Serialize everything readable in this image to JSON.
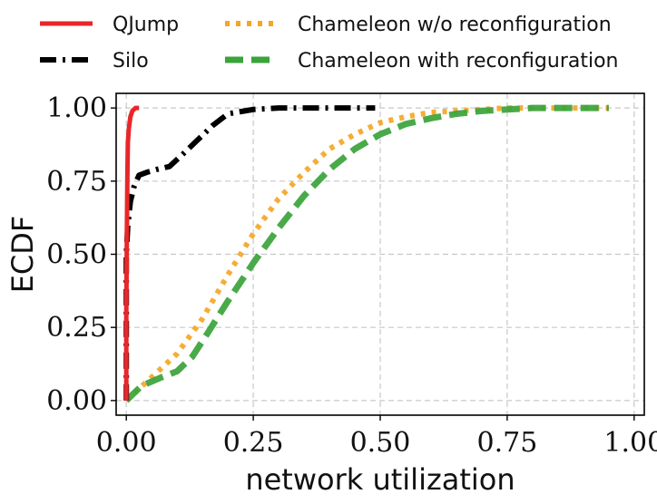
{
  "chart_data": {
    "type": "line",
    "title": "",
    "xlabel": "network utilization",
    "ylabel": "ECDF",
    "xlim": [
      -0.02,
      1.02
    ],
    "ylim": [
      -0.05,
      1.05
    ],
    "grid": true,
    "legend_position": "top",
    "xticks": [
      {
        "value": 0.0,
        "label": "0.00"
      },
      {
        "value": 0.25,
        "label": "0.25"
      },
      {
        "value": 0.5,
        "label": "0.50"
      },
      {
        "value": 0.75,
        "label": "0.75"
      },
      {
        "value": 1.0,
        "label": "1.00"
      }
    ],
    "yticks": [
      {
        "value": 0.0,
        "label": "0.00"
      },
      {
        "value": 0.25,
        "label": "0.25"
      },
      {
        "value": 0.5,
        "label": "0.50"
      },
      {
        "value": 0.75,
        "label": "0.75"
      },
      {
        "value": 1.0,
        "label": "1.00"
      }
    ],
    "series": [
      {
        "name": "QJump",
        "color": "#e8272a",
        "style": "solid",
        "x": [
          0.0,
          0.0,
          0.001,
          0.002,
          0.003,
          0.005,
          0.008,
          0.012,
          0.018,
          0.025
        ],
        "y": [
          0.0,
          0.3,
          0.55,
          0.75,
          0.88,
          0.93,
          0.97,
          0.99,
          1.0,
          1.0
        ]
      },
      {
        "name": "Silo",
        "color": "#000000",
        "style": "dashdot",
        "x": [
          0.0,
          0.0,
          0.003,
          0.008,
          0.015,
          0.025,
          0.04,
          0.06,
          0.085,
          0.11,
          0.14,
          0.17,
          0.2,
          0.25,
          0.3,
          0.4,
          0.49
        ],
        "y": [
          0.0,
          0.5,
          0.6,
          0.68,
          0.73,
          0.77,
          0.78,
          0.79,
          0.8,
          0.84,
          0.89,
          0.94,
          0.98,
          0.995,
          1.0,
          1.0,
          1.0
        ]
      },
      {
        "name": "Chameleon w/o reconfiguration",
        "color": "#f5a623",
        "style": "dotted",
        "x": [
          0.0,
          0.05,
          0.1,
          0.15,
          0.2,
          0.25,
          0.3,
          0.35,
          0.4,
          0.45,
          0.5,
          0.55,
          0.6,
          0.65,
          0.7,
          0.75,
          0.8,
          0.95
        ],
        "y": [
          0.0,
          0.08,
          0.16,
          0.28,
          0.43,
          0.57,
          0.69,
          0.78,
          0.86,
          0.91,
          0.95,
          0.97,
          0.985,
          0.99,
          0.995,
          1.0,
          1.0,
          1.0
        ]
      },
      {
        "name": "Chameleon with reconfiguration",
        "color": "#3aa33a",
        "style": "dashed",
        "x": [
          0.0,
          0.03,
          0.07,
          0.1,
          0.13,
          0.16,
          0.2,
          0.25,
          0.3,
          0.35,
          0.4,
          0.45,
          0.5,
          0.55,
          0.6,
          0.65,
          0.7,
          0.75,
          0.8,
          0.95
        ],
        "y": [
          0.0,
          0.05,
          0.08,
          0.1,
          0.15,
          0.23,
          0.34,
          0.47,
          0.59,
          0.7,
          0.79,
          0.86,
          0.91,
          0.945,
          0.965,
          0.98,
          0.99,
          0.995,
          1.0,
          1.0
        ]
      }
    ]
  }
}
